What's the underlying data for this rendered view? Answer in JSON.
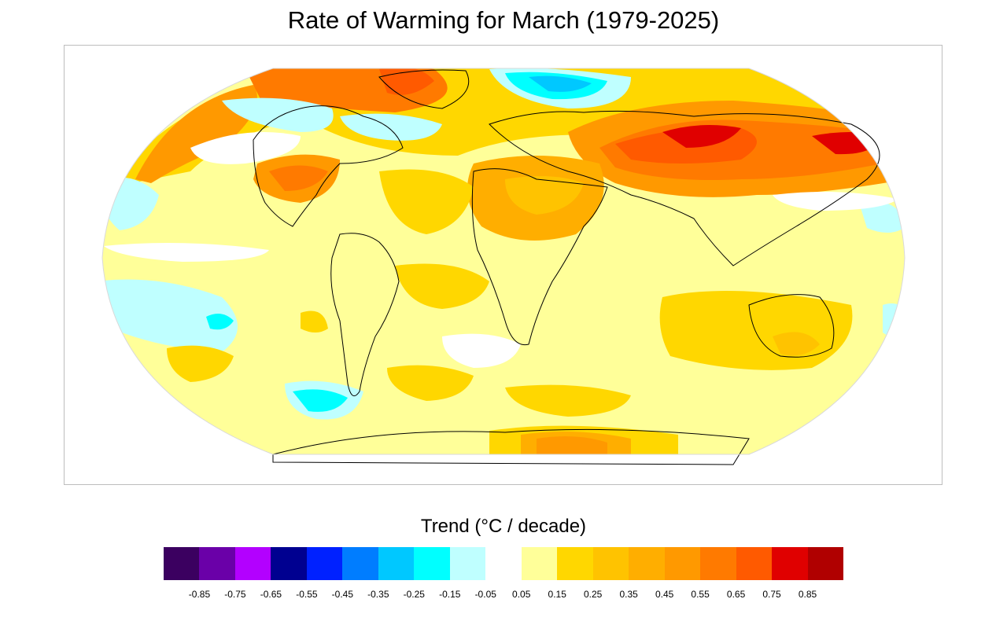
{
  "title": "Rate of Warming for March (1979-2025)",
  "legend": {
    "title": "Trend (°C / decade)",
    "colors": [
      "#3b0060",
      "#6a00a8",
      "#b300ff",
      "#000090",
      "#0021ff",
      "#007dff",
      "#00c8ff",
      "#00ffff",
      "#bfffff",
      "#ffffff",
      "#ffff99",
      "#ffd700",
      "#ffc300",
      "#ffae00",
      "#ff9900",
      "#ff7a00",
      "#ff5a00",
      "#e00000",
      "#b00000"
    ],
    "ticks": [
      "-0.85",
      "-0.75",
      "-0.65",
      "-0.55",
      "-0.45",
      "-0.35",
      "-0.25",
      "-0.15",
      "-0.05",
      "0.05",
      "0.15",
      "0.25",
      "0.35",
      "0.45",
      "0.55",
      "0.65",
      "0.75",
      "0.85"
    ]
  }
}
